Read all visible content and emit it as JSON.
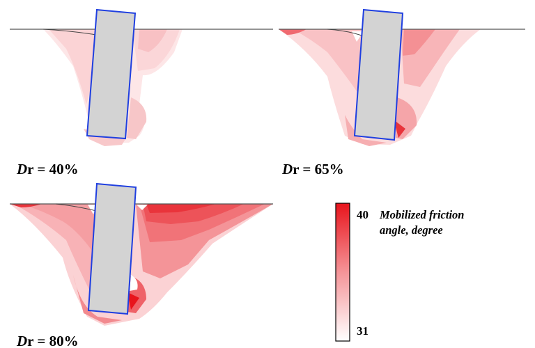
{
  "panels": [
    {
      "id": "dr40",
      "label_var": "D",
      "label_rest": "r = 40%"
    },
    {
      "id": "dr65",
      "label_var": "D",
      "label_rest": "r = 65%"
    },
    {
      "id": "dr80",
      "label_var": "D",
      "label_rest": "r = 80%"
    }
  ],
  "legend": {
    "title_line1": "Mobilized friction",
    "title_line2": "angle, degree",
    "max_label": "40",
    "min_label": "31",
    "max_color": "#e8141c",
    "min_color": "#ffffff"
  },
  "colors": {
    "pile_fill": "#d3d3d3",
    "pile_stroke": "#1f3fe0",
    "ground_line": "#555555"
  }
}
